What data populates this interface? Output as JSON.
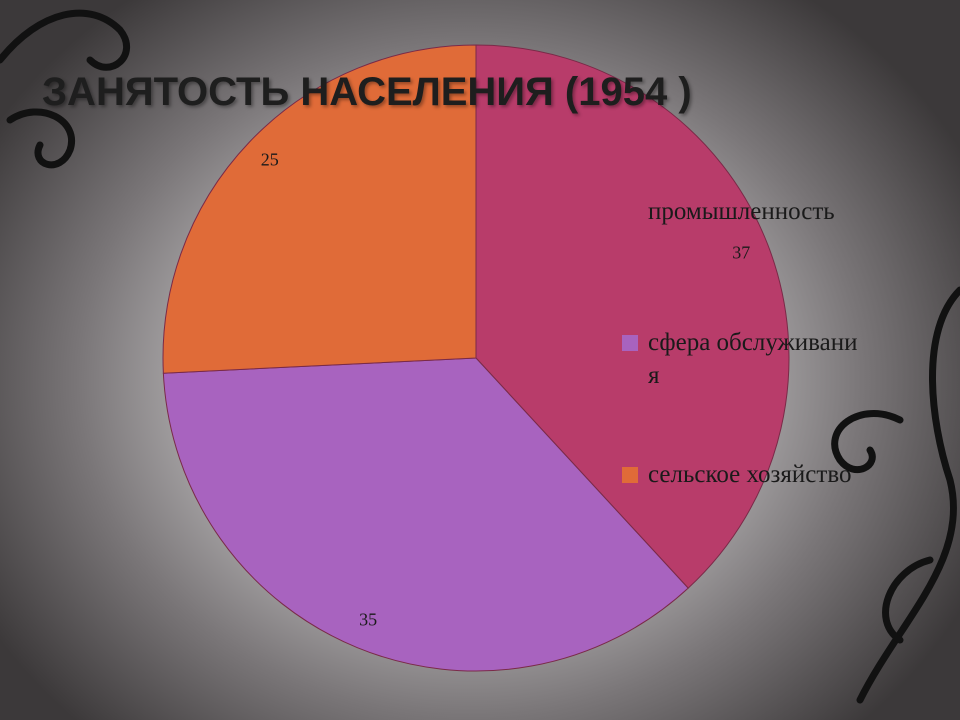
{
  "chart_data": {
    "type": "pie",
    "title": "ЗАНЯТОСТЬ НАСЕЛЕНИЯ (1954 )",
    "categories": [
      "промышленность",
      "сфера обслуживания",
      "сельское хозяйство"
    ],
    "values": [
      37,
      35,
      25
    ],
    "colors": [
      "#b83c6a",
      "#a863bf",
      "#e06b38"
    ],
    "legend": "right"
  }
}
